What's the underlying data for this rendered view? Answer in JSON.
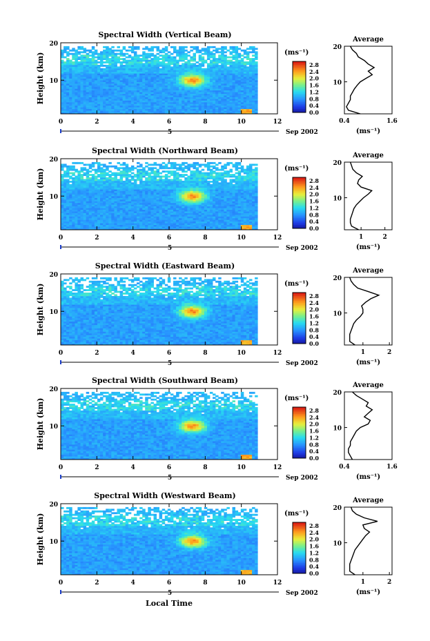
{
  "figure": {
    "bottom_xlabel": "Local Time",
    "month_label": "Sep 2002",
    "date_marker": "5",
    "ylabel": "Height (km)",
    "colorbar_unit": "(ms⁻¹)",
    "profile_title": "Average",
    "profile_xlabel": "(ms⁻¹)"
  },
  "chart_data": [
    {
      "type": "heatmap",
      "title": "Spectral Width (Vertical Beam)",
      "x_ticks": [
        "0",
        "2",
        "4",
        "6",
        "8",
        "10",
        "12"
      ],
      "y_ticks": [
        "20",
        "10"
      ],
      "xlim": [
        0,
        12
      ],
      "ylim": [
        1,
        20
      ],
      "data_xmax": 10.9,
      "colorbar_ticks": [
        "2.8",
        "2.4",
        "2.0",
        "1.6",
        "1.2",
        "0.8",
        "0.4",
        "0.0"
      ],
      "colorbar_range": [
        0,
        3.0
      ],
      "profile": {
        "x_ticks": [
          "0.4",
          "1.6"
        ],
        "xlim": [
          0.4,
          1.6
        ],
        "heights": [
          1,
          2,
          3,
          4,
          5,
          6,
          7,
          8,
          9,
          10,
          11,
          12,
          13,
          14,
          15,
          16,
          17,
          18,
          19,
          20
        ],
        "values": [
          0.8,
          0.5,
          0.45,
          0.5,
          0.55,
          0.55,
          0.6,
          0.65,
          0.72,
          0.8,
          0.95,
          1.1,
          1.0,
          1.15,
          1.0,
          0.9,
          0.75,
          0.7,
          0.6,
          0.55
        ]
      }
    },
    {
      "type": "heatmap",
      "title": "Spectral Width (Northward Beam)",
      "x_ticks": [
        "0",
        "2",
        "4",
        "6",
        "8",
        "10",
        "12"
      ],
      "y_ticks": [
        "20",
        "10"
      ],
      "xlim": [
        0,
        12
      ],
      "ylim": [
        1,
        20
      ],
      "data_xmax": 10.9,
      "colorbar_ticks": [
        "2.8",
        "2.4",
        "2.0",
        "1.6",
        "1.2",
        "0.8",
        "0.4",
        "0.0"
      ],
      "colorbar_range": [
        0,
        3.0
      ],
      "profile": {
        "x_ticks": [
          "1",
          "2"
        ],
        "xlim": [
          0.3,
          2.3
        ],
        "heights": [
          1,
          2,
          3,
          4,
          5,
          6,
          7,
          8,
          9,
          10,
          11,
          12,
          13,
          14,
          15,
          16,
          17,
          18,
          19,
          20
        ],
        "values": [
          0.9,
          0.6,
          0.55,
          0.55,
          0.6,
          0.65,
          0.7,
          0.8,
          0.95,
          1.1,
          1.3,
          1.45,
          1.0,
          0.85,
          0.9,
          1.05,
          0.8,
          0.65,
          0.6,
          0.55
        ]
      }
    },
    {
      "type": "heatmap",
      "title": "Spectral Width (Eastward Beam)",
      "x_ticks": [
        "0",
        "2",
        "4",
        "6",
        "8",
        "10",
        "12"
      ],
      "y_ticks": [
        "20",
        "10"
      ],
      "xlim": [
        0,
        12
      ],
      "ylim": [
        1,
        20
      ],
      "data_xmax": 10.9,
      "colorbar_ticks": [
        "2.8",
        "2.4",
        "2.0",
        "1.6",
        "1.2",
        "0.8",
        "0.4",
        "0.0"
      ],
      "colorbar_range": [
        0,
        3.0
      ],
      "profile": {
        "x_ticks": [
          "1",
          "2"
        ],
        "xlim": [
          0.3,
          2.1
        ],
        "heights": [
          1,
          2,
          3,
          4,
          5,
          6,
          7,
          8,
          9,
          10,
          11,
          12,
          13,
          14,
          15,
          16,
          17,
          18,
          19,
          20
        ],
        "values": [
          0.7,
          0.5,
          0.5,
          0.5,
          0.55,
          0.6,
          0.65,
          0.75,
          0.9,
          1.0,
          1.0,
          0.95,
          1.1,
          1.3,
          1.6,
          1.2,
          0.8,
          0.65,
          0.55,
          0.5
        ]
      }
    },
    {
      "type": "heatmap",
      "title": "Spectral Width (Southward Beam)",
      "x_ticks": [
        "0",
        "2",
        "4",
        "6",
        "8",
        "10",
        "12"
      ],
      "y_ticks": [
        "20",
        "10"
      ],
      "xlim": [
        0,
        12
      ],
      "ylim": [
        1,
        20
      ],
      "data_xmax": 10.9,
      "colorbar_ticks": [
        "2.8",
        "2.4",
        "2.0",
        "1.6",
        "1.2",
        "0.8",
        "0.4",
        "0.0"
      ],
      "colorbar_range": [
        0,
        3.0
      ],
      "profile": {
        "x_ticks": [
          "0.4",
          "1.6"
        ],
        "xlim": [
          0.4,
          1.6
        ],
        "heights": [
          1,
          2,
          3,
          4,
          5,
          6,
          7,
          8,
          9,
          10,
          11,
          12,
          13,
          14,
          15,
          16,
          17,
          18,
          19,
          20
        ],
        "values": [
          0.6,
          0.55,
          0.5,
          0.5,
          0.55,
          0.55,
          0.6,
          0.65,
          0.7,
          0.8,
          1.0,
          1.05,
          0.9,
          1.0,
          1.1,
          0.95,
          1.0,
          0.85,
          0.7,
          0.6
        ]
      }
    },
    {
      "type": "heatmap",
      "title": "Spectral Width (Westward Beam)",
      "x_ticks": [
        "0",
        "2",
        "4",
        "6",
        "8",
        "10",
        "12"
      ],
      "y_ticks": [
        "20",
        "10"
      ],
      "xlim": [
        0,
        12
      ],
      "ylim": [
        1,
        20
      ],
      "data_xmax": 10.9,
      "colorbar_ticks": [
        "2.8",
        "2.4",
        "2.0",
        "1.6",
        "1.2",
        "0.8",
        "0.4",
        "0.0"
      ],
      "colorbar_range": [
        0,
        3.0
      ],
      "profile": {
        "x_ticks": [
          "1",
          "2"
        ],
        "xlim": [
          0.3,
          2.1
        ],
        "heights": [
          1,
          2,
          3,
          4,
          5,
          6,
          7,
          8,
          9,
          10,
          11,
          12,
          13,
          14,
          15,
          16,
          17,
          18,
          19,
          20
        ],
        "values": [
          0.7,
          0.5,
          0.5,
          0.5,
          0.55,
          0.6,
          0.65,
          0.7,
          0.8,
          0.9,
          1.0,
          1.1,
          1.25,
          1.05,
          1.0,
          1.55,
          1.05,
          0.75,
          0.6,
          0.55
        ]
      }
    }
  ]
}
